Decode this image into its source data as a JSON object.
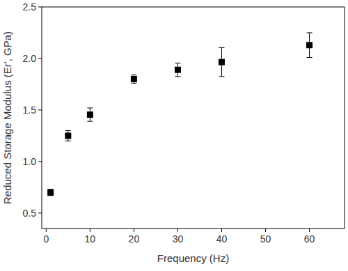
{
  "chart_data": {
    "type": "scatter",
    "x_label": "Frequency (Hz)",
    "y_label": "Reduced Storage Modulus (Er', GPa)",
    "series": [
      {
        "name": "Er'",
        "color": "#000000",
        "marker": "square",
        "x": [
          1,
          5,
          10,
          20,
          30,
          40,
          60
        ],
        "values": [
          0.7,
          1.25,
          1.455,
          1.8,
          1.89,
          1.965,
          2.13
        ],
        "errors": [
          0.03,
          0.05,
          0.065,
          0.04,
          0.065,
          0.14,
          0.12
        ]
      }
    ],
    "xlim": [
      -1,
      68
    ],
    "xticks": [
      0,
      10,
      20,
      30,
      40,
      50,
      60
    ],
    "ylim": [
      0.35,
      2.5
    ],
    "yticks": [
      {
        "value": 0.5,
        "label": "0.5"
      },
      {
        "value": 1.0,
        "label": "1.0"
      },
      {
        "value": 1.5,
        "label": "1.5"
      },
      {
        "value": 2.0,
        "label": "2.0"
      },
      {
        "value": 2.5,
        "label": "2.5"
      }
    ],
    "grid": false
  }
}
